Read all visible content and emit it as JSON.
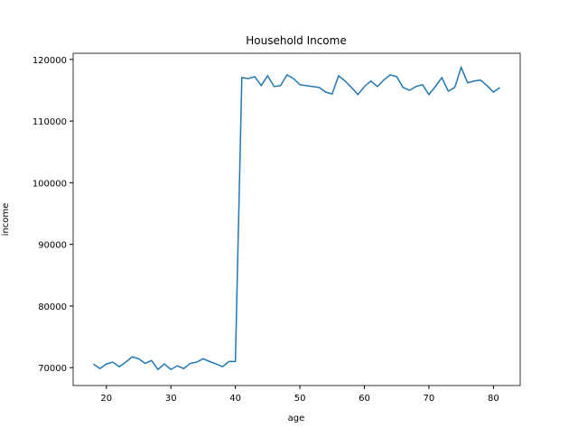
{
  "chart_data": {
    "type": "line",
    "title": "Household Income",
    "xlabel": "age",
    "ylabel": "income",
    "x": [
      18,
      19,
      20,
      21,
      22,
      23,
      24,
      25,
      26,
      27,
      28,
      29,
      30,
      31,
      32,
      33,
      34,
      35,
      36,
      37,
      38,
      39,
      40,
      41,
      42,
      43,
      44,
      45,
      46,
      47,
      48,
      49,
      50,
      51,
      52,
      53,
      54,
      55,
      56,
      57,
      58,
      59,
      60,
      61,
      62,
      63,
      64,
      65,
      66,
      67,
      68,
      69,
      70,
      71,
      72,
      73,
      74,
      75,
      76,
      77,
      78,
      79,
      80,
      81
    ],
    "series": [
      {
        "name": "income",
        "color": "#1f77b4",
        "values": [
          70600,
          69850,
          70600,
          70900,
          70150,
          70900,
          71750,
          71450,
          70700,
          71150,
          69700,
          70600,
          69700,
          70300,
          69850,
          70700,
          70900,
          71450,
          71000,
          70600,
          70150,
          71000,
          71000,
          117050,
          116900,
          117200,
          115750,
          117350,
          115600,
          115750,
          117500,
          116900,
          115900,
          115750,
          115600,
          115450,
          114700,
          114400,
          117350,
          116500,
          115450,
          114300,
          115600,
          116500,
          115600,
          116650,
          117500,
          117200,
          115450,
          115000,
          115600,
          115900,
          114300,
          115600,
          117050,
          114850,
          115450,
          118700,
          116200,
          116500,
          116650,
          115750,
          114700,
          115450
        ]
      }
    ],
    "xlim": [
      14.85,
      84.15
    ],
    "xticks": [
      20,
      30,
      40,
      50,
      60,
      70,
      80
    ],
    "ylim": [
      67100,
      121000
    ],
    "yticks": [
      70000,
      80000,
      90000,
      100000,
      110000,
      120000
    ]
  }
}
